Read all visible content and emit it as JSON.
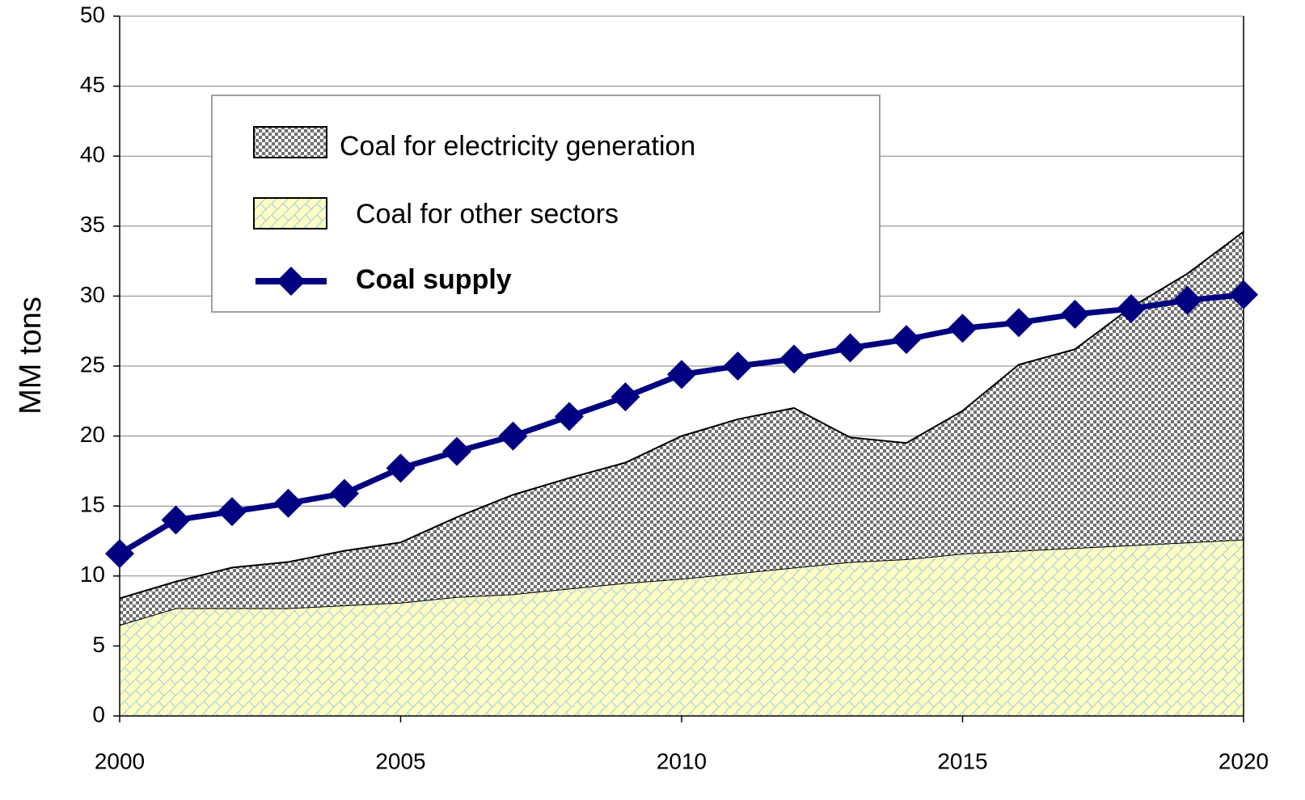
{
  "chart_data": {
    "type": "area",
    "stacked": true,
    "y_label": "MM tons",
    "x": [
      2000,
      2001,
      2002,
      2003,
      2004,
      2005,
      2006,
      2007,
      2008,
      2009,
      2010,
      2011,
      2012,
      2013,
      2014,
      2015,
      2016,
      2017,
      2018,
      2019,
      2020
    ],
    "xlim": [
      2000,
      2020
    ],
    "xticks": [
      2000,
      2005,
      2010,
      2015,
      2020
    ],
    "ylim": [
      0,
      50
    ],
    "yticks": [
      0,
      5,
      10,
      15,
      20,
      25,
      30,
      35,
      40,
      45,
      50
    ],
    "grid": true,
    "legend": "top-left",
    "series": [
      {
        "name": "Coal for other sectors",
        "kind": "area",
        "color": "#ffffc0",
        "values": [
          6.5,
          7.7,
          7.7,
          7.7,
          7.9,
          8.1,
          8.5,
          8.7,
          9.1,
          9.5,
          9.8,
          10.2,
          10.6,
          11.0,
          11.2,
          11.6,
          11.8,
          12.0,
          12.2,
          12.4,
          12.6
        ]
      },
      {
        "name": "Coal for electricity generation",
        "kind": "area",
        "color": "#808080",
        "values": [
          1.9,
          1.9,
          2.9,
          3.3,
          3.9,
          4.3,
          5.7,
          7.1,
          7.9,
          8.6,
          10.2,
          11.0,
          11.4,
          8.9,
          8.3,
          10.2,
          13.3,
          14.2,
          17.0,
          19.2,
          22.0
        ]
      },
      {
        "name": "Coal supply",
        "kind": "line",
        "color": "#000080",
        "values": [
          11.6,
          14.0,
          14.6,
          15.2,
          15.9,
          17.7,
          18.9,
          20.0,
          21.4,
          22.8,
          24.4,
          25.0,
          25.5,
          26.3,
          26.9,
          27.7,
          28.1,
          28.7,
          29.1,
          29.7,
          30.1
        ]
      }
    ]
  }
}
